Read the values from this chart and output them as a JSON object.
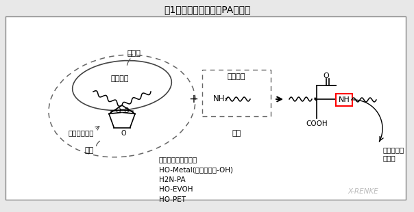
{
  "title": "图1马来酸酐接枝物和PA反应图",
  "title_fontsize": 10,
  "bg_color": "#e8e8e8",
  "box_facecolor": "#f5f5f5",
  "labels": {
    "fei_ji_xing": "非极性",
    "xi_ting_chain": "烯烃链段",
    "ma_lai_group": "马来酸酐基团",
    "ji_xing_left": "极性",
    "ni_long_chain": "尼龙链段",
    "nh2": "NH₂",
    "ji_xing_right": "极性",
    "cooh": "COOH",
    "o_top": "O",
    "nh_box": "NH",
    "tuo_shui": "脱水，形成\n化学键",
    "common_polar": "常见极性物性包括：\nHO-Metal(金属表面含-OH)\nH2N-PA\nHO-EVOH\nHO-PET",
    "watermark": "X-RENKE"
  },
  "figure_size": [
    6.04,
    3.1
  ],
  "dpi": 100
}
